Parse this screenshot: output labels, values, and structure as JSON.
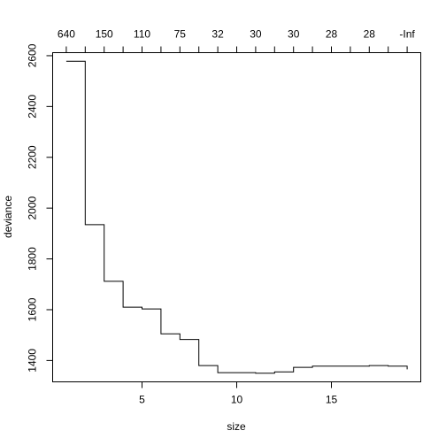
{
  "chart_data": {
    "type": "line",
    "step": true,
    "xlabel": "size",
    "ylabel": "deviance",
    "x": [
      1,
      2,
      3,
      4,
      5,
      6,
      7,
      8,
      9,
      10,
      11,
      12,
      13,
      14,
      15,
      16,
      17,
      18,
      19
    ],
    "y": [
      2578,
      1935,
      1712,
      1610,
      1603,
      1505,
      1483,
      1380,
      1352,
      1352,
      1350,
      1355,
      1373,
      1378,
      1378,
      1378,
      1380,
      1378,
      1365
    ],
    "xlim": [
      0.28,
      19.72
    ],
    "ylim": [
      1316,
      2612
    ],
    "xticks": [
      5,
      10,
      15
    ],
    "yticks": [
      1400,
      1600,
      1800,
      2000,
      2200,
      2400,
      2600
    ],
    "top_axis": {
      "labels": [
        "640",
        "150",
        "110",
        "75",
        "32",
        "30",
        "30",
        "28",
        "28",
        "-Inf"
      ],
      "positions": [
        1,
        3,
        5,
        7,
        9,
        11,
        13,
        15,
        17,
        19
      ],
      "minor_tick_positions": [
        2,
        4,
        6,
        8,
        10,
        12,
        14,
        16,
        18
      ]
    },
    "grid": false,
    "legend": "none"
  }
}
